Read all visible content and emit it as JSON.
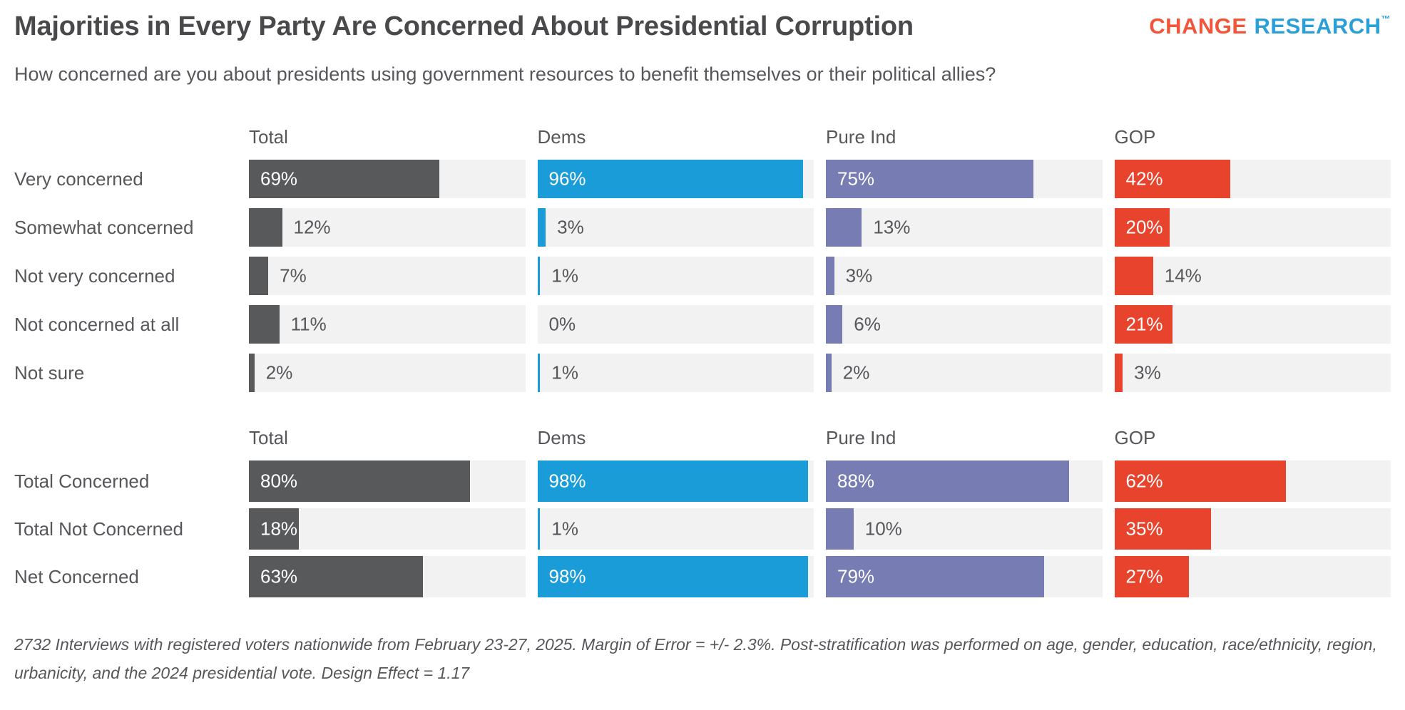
{
  "page": {
    "title": "Majorities in Every Party Are Concerned About Presidential Corruption",
    "subtitle": "How concerned are you about presidents using government resources to benefit themselves or their political allies?",
    "footnote": "2732 Interviews with registered voters nationwide from February 23-27, 2025. Margin of Error = +/- 2.3%. Post-stratification was performed on age, gender, education, race/ethnicity, region, urbanicity, and the 2024 presidential vote. Design Effect = 1.17"
  },
  "logo": {
    "word1": "CHANGE",
    "word2": "RESEARCH",
    "tm": "™",
    "word1_color": "#F1563B",
    "word2_color": "#2B9FD8"
  },
  "colors": {
    "text": "#56575A",
    "track": "#F2F2F3",
    "label_inside": "#FFFFFF",
    "total": "#58595B",
    "dems": "#1A9CD8",
    "pure_ind": "#777CB3",
    "gop": "#E8432C"
  },
  "chart_data": {
    "type": "bar",
    "orientation": "horizontal",
    "unit": "%",
    "xlim": [
      0,
      100
    ],
    "grid": false,
    "legend_position": "column-headers",
    "columns": [
      "Total",
      "Dems",
      "Pure Ind",
      "GOP"
    ],
    "column_colors": [
      "#58595B",
      "#1A9CD8",
      "#777CB3",
      "#E8432C"
    ],
    "label_inside_min_value": 16,
    "sections": [
      {
        "name": "concern-levels",
        "categories": [
          "Very concerned",
          "Somewhat concerned",
          "Not very concerned",
          "Not concerned at all",
          "Not sure"
        ],
        "series": [
          {
            "name": "Total",
            "values": [
              69,
              12,
              7,
              11,
              2
            ]
          },
          {
            "name": "Dems",
            "values": [
              96,
              3,
              1,
              0,
              1
            ]
          },
          {
            "name": "Pure Ind",
            "values": [
              75,
              13,
              3,
              6,
              2
            ]
          },
          {
            "name": "GOP",
            "values": [
              42,
              20,
              14,
              21,
              3
            ]
          }
        ]
      },
      {
        "name": "concern-summary",
        "categories": [
          "Total Concerned",
          "Total Not Concerned",
          "Net Concerned"
        ],
        "series": [
          {
            "name": "Total",
            "values": [
              80,
              18,
              63
            ]
          },
          {
            "name": "Dems",
            "values": [
              98,
              1,
              98
            ]
          },
          {
            "name": "Pure Ind",
            "values": [
              88,
              10,
              79
            ]
          },
          {
            "name": "GOP",
            "values": [
              62,
              35,
              27
            ]
          }
        ]
      }
    ]
  }
}
